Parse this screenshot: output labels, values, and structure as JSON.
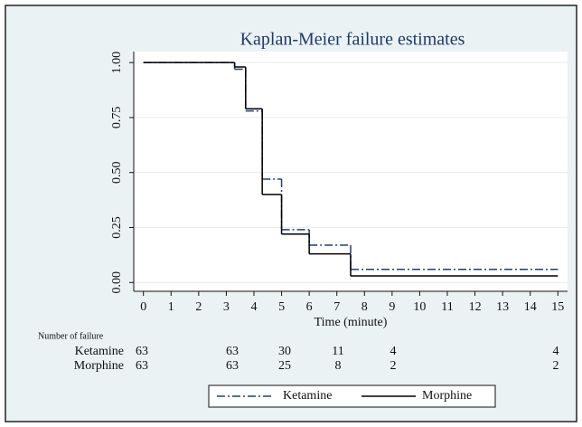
{
  "chart_data": {
    "type": "step",
    "title": "Kaplan-Meier failure estimates",
    "x_label": "Time (minute)",
    "x": [
      0,
      3.3,
      3.7,
      4.3,
      5,
      6,
      7.5,
      15
    ],
    "series": [
      {
        "name": "Ketamine",
        "color": "#1f3f6e",
        "dash": "dash-dot",
        "values": [
          1,
          0.97,
          0.78,
          0.47,
          0.24,
          0.17,
          0.06,
          0.06
        ]
      },
      {
        "name": "Morphine",
        "color": "#000000",
        "dash": "solid",
        "values": [
          1,
          0.98,
          0.79,
          0.4,
          0.22,
          0.13,
          0.03,
          0.03
        ]
      }
    ],
    "xlim": [
      -0.35,
      15.35
    ],
    "ylim": [
      -0.04,
      1.05
    ],
    "xticks": [
      0,
      1,
      2,
      3,
      4,
      5,
      6,
      7,
      8,
      9,
      10,
      11,
      12,
      13,
      14,
      15
    ],
    "yticks": [
      {
        "value": 0,
        "label": "0.00"
      },
      {
        "value": 0.25,
        "label": "0.25"
      },
      {
        "value": 0.5,
        "label": "0.50"
      },
      {
        "value": 0.75,
        "label": "0.75"
      },
      {
        "value": 1,
        "label": "1.00"
      }
    ],
    "grid": true,
    "risk_table": {
      "title": "Number of failure",
      "rows": [
        {
          "name": "Ketamine",
          "values": [
            63,
            63,
            30,
            11,
            4,
            4
          ]
        },
        {
          "name": "Morphine",
          "values": [
            63,
            63,
            25,
            8,
            2,
            2
          ]
        }
      ]
    }
  }
}
